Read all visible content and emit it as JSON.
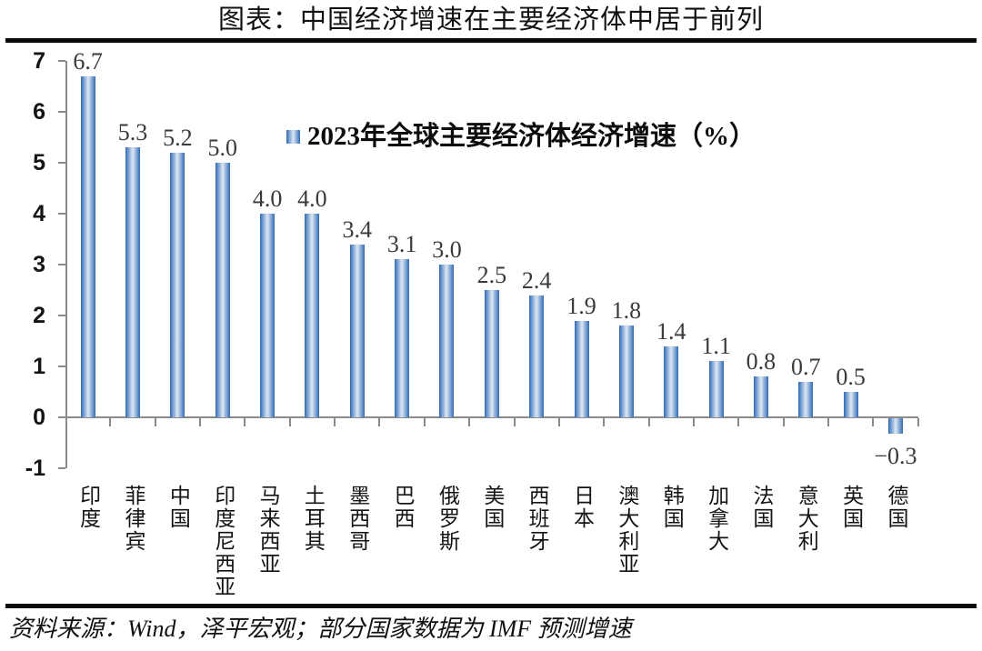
{
  "header": {
    "title": "图表：中国经济增速在主要经济体中居于前列"
  },
  "footer": {
    "source": "资料来源：Wind，泽平宏观；部分国家数据为 IMF 预测增速"
  },
  "chart_data": {
    "type": "bar",
    "legend": "2023年全球主要经济体经济增速（%）",
    "legend_position": "top-center",
    "categories": [
      "印度",
      "菲律宾",
      "中国",
      "印度尼西亚",
      "马来西亚",
      "土耳其",
      "墨西哥",
      "巴西",
      "俄罗斯",
      "美国",
      "西班牙",
      "日本",
      "澳大利亚",
      "韩国",
      "加拿大",
      "法国",
      "意大利",
      "英国",
      "德国"
    ],
    "values": [
      6.7,
      5.3,
      5.2,
      5.0,
      4.0,
      4.0,
      3.4,
      3.1,
      3.0,
      2.5,
      2.4,
      1.9,
      1.8,
      1.4,
      1.1,
      0.8,
      0.7,
      0.5,
      -0.3
    ],
    "value_labels": [
      "6.7",
      "5.3",
      "5.2",
      "5.0",
      "4.0",
      "4.0",
      "3.4",
      "3.1",
      "3.0",
      "2.5",
      "2.4",
      "1.9",
      "1.8",
      "1.4",
      "1.1",
      "0.8",
      "0.7",
      "0.5",
      "−0.3"
    ],
    "ylim": [
      -1,
      7
    ],
    "yticks": [
      "7",
      "6",
      "5",
      "4",
      "3",
      "2",
      "1",
      "0",
      "-1"
    ],
    "grid": false,
    "colors": {
      "bar_edge": "#2f6bb0",
      "bar_mid": "#7ca3d4",
      "bar_center": "#dfe8f4",
      "axis": "#8a8a8a",
      "value_label": "#3a3a3a"
    }
  }
}
